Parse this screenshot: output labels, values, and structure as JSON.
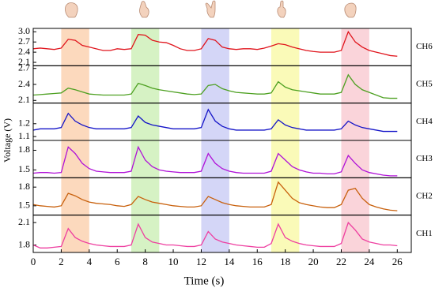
{
  "chart_data": {
    "type": "line",
    "xlabel": "Time (s)",
    "ylabel": "Voltage (V)",
    "x": [
      0,
      0.5,
      1,
      1.5,
      2,
      2.5,
      3,
      3.5,
      4,
      4.5,
      5,
      5.5,
      6,
      6.5,
      7,
      7.5,
      8,
      8.5,
      9,
      9.5,
      10,
      10.5,
      11,
      11.5,
      12,
      12.5,
      13,
      13.5,
      14,
      14.5,
      15,
      15.5,
      16,
      16.5,
      17,
      17.5,
      18,
      18.5,
      19,
      19.5,
      20,
      20.5,
      21,
      21.5,
      22,
      22.5,
      23,
      23.5,
      24,
      24.5,
      25,
      25.5,
      26
    ],
    "xlim": [
      0,
      27
    ],
    "xticks": [
      0,
      2,
      4,
      6,
      8,
      10,
      12,
      14,
      16,
      18,
      20,
      22,
      24,
      26
    ],
    "highlights": [
      {
        "xrange": [
          2,
          4
        ],
        "color": "#fcd9bd"
      },
      {
        "xrange": [
          7,
          9
        ],
        "color": "#d6f2c4"
      },
      {
        "xrange": [
          12,
          14
        ],
        "color": "#d4d6f7"
      },
      {
        "xrange": [
          17,
          19
        ],
        "color": "#fafab8"
      },
      {
        "xrange": [
          22,
          24
        ],
        "color": "#fad4da"
      }
    ],
    "series": [
      {
        "name": "CH6",
        "color": "#e0141c",
        "ylim": [
          2.0,
          3.1
        ],
        "yticks": [
          2.1,
          2.4,
          2.7,
          {
            "value": 3.0,
            "label": "3.0"
          }
        ],
        "values": [
          2.5,
          2.52,
          2.5,
          2.48,
          2.52,
          2.78,
          2.75,
          2.6,
          2.55,
          2.5,
          2.45,
          2.45,
          2.5,
          2.48,
          2.5,
          2.92,
          2.9,
          2.75,
          2.7,
          2.68,
          2.6,
          2.5,
          2.45,
          2.45,
          2.5,
          2.8,
          2.75,
          2.55,
          2.5,
          2.48,
          2.5,
          2.5,
          2.48,
          2.52,
          2.58,
          2.65,
          2.62,
          2.55,
          2.5,
          2.45,
          2.42,
          2.4,
          2.4,
          2.4,
          2.45,
          3.0,
          2.7,
          2.55,
          2.45,
          2.4,
          2.35,
          2.3,
          2.28
        ]
      },
      {
        "name": "CH5",
        "color": "#4da021",
        "ylim": [
          2.05,
          2.75
        ],
        "yticks": [
          2.1,
          2.4,
          2.7
        ],
        "values": [
          2.2,
          2.21,
          2.22,
          2.23,
          2.24,
          2.33,
          2.3,
          2.26,
          2.22,
          2.21,
          2.2,
          2.2,
          2.2,
          2.2,
          2.22,
          2.42,
          2.38,
          2.33,
          2.3,
          2.28,
          2.26,
          2.24,
          2.22,
          2.21,
          2.22,
          2.38,
          2.4,
          2.32,
          2.28,
          2.25,
          2.24,
          2.23,
          2.22,
          2.22,
          2.24,
          2.45,
          2.35,
          2.3,
          2.28,
          2.26,
          2.24,
          2.22,
          2.22,
          2.22,
          2.25,
          2.58,
          2.4,
          2.3,
          2.25,
          2.2,
          2.15,
          2.14,
          2.14
        ]
      },
      {
        "name": "CH4",
        "color": "#1414c8",
        "ylim": [
          1.07,
          1.36
        ],
        "yticks": [
          1.1,
          1.2
        ],
        "values": [
          1.15,
          1.16,
          1.16,
          1.16,
          1.17,
          1.28,
          1.22,
          1.19,
          1.17,
          1.16,
          1.16,
          1.16,
          1.16,
          1.16,
          1.17,
          1.26,
          1.21,
          1.19,
          1.18,
          1.17,
          1.16,
          1.16,
          1.16,
          1.16,
          1.17,
          1.31,
          1.22,
          1.18,
          1.16,
          1.15,
          1.15,
          1.15,
          1.15,
          1.15,
          1.16,
          1.23,
          1.19,
          1.17,
          1.16,
          1.15,
          1.15,
          1.15,
          1.15,
          1.15,
          1.16,
          1.22,
          1.19,
          1.17,
          1.16,
          1.15,
          1.14,
          1.14,
          1.14
        ]
      },
      {
        "name": "CH3",
        "color": "#b012d8",
        "ylim": [
          1.38,
          1.95
        ],
        "yticks": [
          1.5,
          1.8
        ],
        "values": [
          1.45,
          1.46,
          1.46,
          1.45,
          1.46,
          1.85,
          1.75,
          1.6,
          1.52,
          1.48,
          1.47,
          1.46,
          1.46,
          1.46,
          1.48,
          1.85,
          1.65,
          1.55,
          1.5,
          1.48,
          1.47,
          1.46,
          1.46,
          1.46,
          1.48,
          1.75,
          1.6,
          1.52,
          1.48,
          1.46,
          1.45,
          1.45,
          1.45,
          1.45,
          1.48,
          1.75,
          1.65,
          1.55,
          1.5,
          1.47,
          1.45,
          1.45,
          1.44,
          1.44,
          1.47,
          1.72,
          1.6,
          1.5,
          1.46,
          1.44,
          1.42,
          1.41,
          1.41
        ]
      },
      {
        "name": "CH2",
        "color": "#c8600c",
        "ylim": [
          1.35,
          1.95
        ],
        "yticks": [
          1.5,
          1.8
        ],
        "values": [
          1.52,
          1.5,
          1.49,
          1.48,
          1.5,
          1.7,
          1.66,
          1.6,
          1.56,
          1.54,
          1.53,
          1.52,
          1.5,
          1.49,
          1.52,
          1.65,
          1.6,
          1.56,
          1.54,
          1.52,
          1.5,
          1.49,
          1.48,
          1.48,
          1.5,
          1.65,
          1.6,
          1.55,
          1.52,
          1.5,
          1.49,
          1.48,
          1.48,
          1.48,
          1.52,
          1.88,
          1.75,
          1.62,
          1.55,
          1.52,
          1.5,
          1.48,
          1.47,
          1.47,
          1.52,
          1.75,
          1.78,
          1.62,
          1.52,
          1.48,
          1.45,
          1.43,
          1.42
        ]
      },
      {
        "name": "CH1",
        "color": "#ee3fa0",
        "ylim": [
          1.7,
          2.2
        ],
        "yticks": [
          1.8,
          2.1
        ],
        "values": [
          1.8,
          1.76,
          1.76,
          1.77,
          1.78,
          2.02,
          1.9,
          1.85,
          1.82,
          1.8,
          1.79,
          1.78,
          1.78,
          1.78,
          1.8,
          2.08,
          1.9,
          1.84,
          1.82,
          1.8,
          1.8,
          1.79,
          1.78,
          1.78,
          1.8,
          1.98,
          1.88,
          1.84,
          1.82,
          1.8,
          1.79,
          1.78,
          1.77,
          1.77,
          1.82,
          2.08,
          1.9,
          1.85,
          1.82,
          1.8,
          1.79,
          1.78,
          1.78,
          1.78,
          1.82,
          2.1,
          2.0,
          1.88,
          1.84,
          1.82,
          1.8,
          1.8,
          1.79
        ]
      }
    ]
  }
}
